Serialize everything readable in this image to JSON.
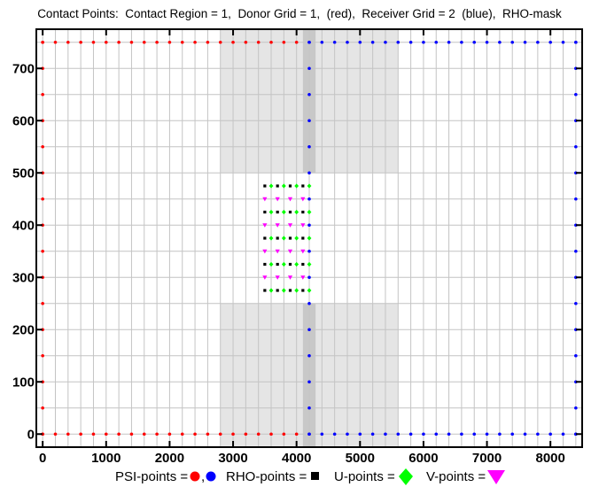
{
  "chart_data": {
    "type": "scatter",
    "title": "Contact Points:  Contact Region = 1,  Donor Grid = 1,  (red),  Receiver Grid = 2  (blue),  RHO-mask",
    "xlabel": "",
    "ylabel": "",
    "xlim": [
      -100,
      8500
    ],
    "ylim": [
      -25,
      775
    ],
    "xticks": [
      0,
      1000,
      2000,
      3000,
      4000,
      5000,
      6000,
      7000,
      8000
    ],
    "yticks": [
      0,
      100,
      200,
      300,
      400,
      500,
      600,
      700
    ],
    "grid": true,
    "grid_x": [
      0,
      200,
      400,
      600,
      800,
      1000,
      1200,
      1400,
      1600,
      1800,
      2000,
      2200,
      2400,
      2600,
      2800,
      3000,
      3200,
      3400,
      3600,
      3800,
      4000,
      4200,
      4400,
      4600,
      4800,
      5000,
      5200,
      5400,
      5600,
      5800,
      6000,
      6200,
      6400,
      6600,
      6800,
      7000,
      7200,
      7400,
      7600,
      7800,
      8000,
      8200,
      8400
    ],
    "grid_y": [
      0,
      50,
      100,
      150,
      200,
      250,
      300,
      350,
      400,
      450,
      500,
      550,
      600,
      650,
      700,
      750
    ],
    "mask_regions": [
      {
        "x": [
          2800,
          5600
        ],
        "y": [
          500,
          775
        ],
        "color": "#e5e5e5"
      },
      {
        "x": [
          2800,
          5600
        ],
        "y": [
          -25,
          250
        ],
        "color": "#e5e5e5"
      },
      {
        "x": [
          4100,
          4300
        ],
        "y": [
          500,
          775
        ],
        "color": "#c8c8c8"
      },
      {
        "x": [
          4100,
          4300
        ],
        "y": [
          -25,
          250
        ],
        "color": "#c8c8c8"
      }
    ],
    "series": [
      {
        "kind": "psi-donor",
        "color": "#ff0000",
        "marker": "circle",
        "groups": [
          {
            "xs": [
              0,
              200,
              400,
              600,
              800,
              1000,
              1200,
              1400,
              1600,
              1800,
              2000,
              2200,
              2400,
              2600,
              2800,
              3000,
              3200,
              3400,
              3600,
              3800,
              4000
            ],
            "ys": [
              0,
              750
            ]
          },
          {
            "xs": [
              0
            ],
            "ys": [
              0,
              50,
              100,
              150,
              200,
              250,
              300,
              350,
              400,
              450,
              500,
              550,
              600,
              650,
              700,
              750
            ]
          }
        ]
      },
      {
        "kind": "psi-receiver",
        "color": "#0000ff",
        "marker": "circle",
        "groups": [
          {
            "xs": [
              4200,
              4400,
              4600,
              4800,
              5000,
              5200,
              5400,
              5600,
              5800,
              6000,
              6200,
              6400,
              6600,
              6800,
              7000,
              7200,
              7400,
              7600,
              7800,
              8000,
              8200,
              8400
            ],
            "ys": [
              0,
              750
            ]
          },
          {
            "xs": [
              4200,
              8400
            ],
            "ys": [
              0,
              50,
              100,
              150,
              200,
              250,
              300,
              350,
              400,
              450,
              500,
              550,
              600,
              650,
              700,
              750
            ]
          }
        ]
      },
      {
        "kind": "rho",
        "color": "#000000",
        "marker": "square",
        "groups": [
          {
            "xs": [
              3500,
              3700,
              3900,
              4100
            ],
            "ys": [
              275,
              325,
              375,
              425,
              475
            ]
          }
        ]
      },
      {
        "kind": "u",
        "color": "#00ff00",
        "marker": "diamond",
        "groups": [
          {
            "xs": [
              3600,
              3800,
              4000,
              4200
            ],
            "ys": [
              275,
              325,
              375,
              425,
              475
            ]
          }
        ]
      },
      {
        "kind": "v",
        "color": "#ff00ff",
        "marker": "triangle-down",
        "groups": [
          {
            "xs": [
              3500,
              3700,
              3900,
              4100
            ],
            "ys": [
              300,
              350,
              400,
              450
            ]
          }
        ]
      }
    ],
    "legend": {
      "placement": "bottom",
      "psi_label": "PSI-points =",
      "psi_sep": ",",
      "rho_label": "RHO-points =",
      "u_label": "U-points =",
      "v_label": "V-points ="
    }
  }
}
